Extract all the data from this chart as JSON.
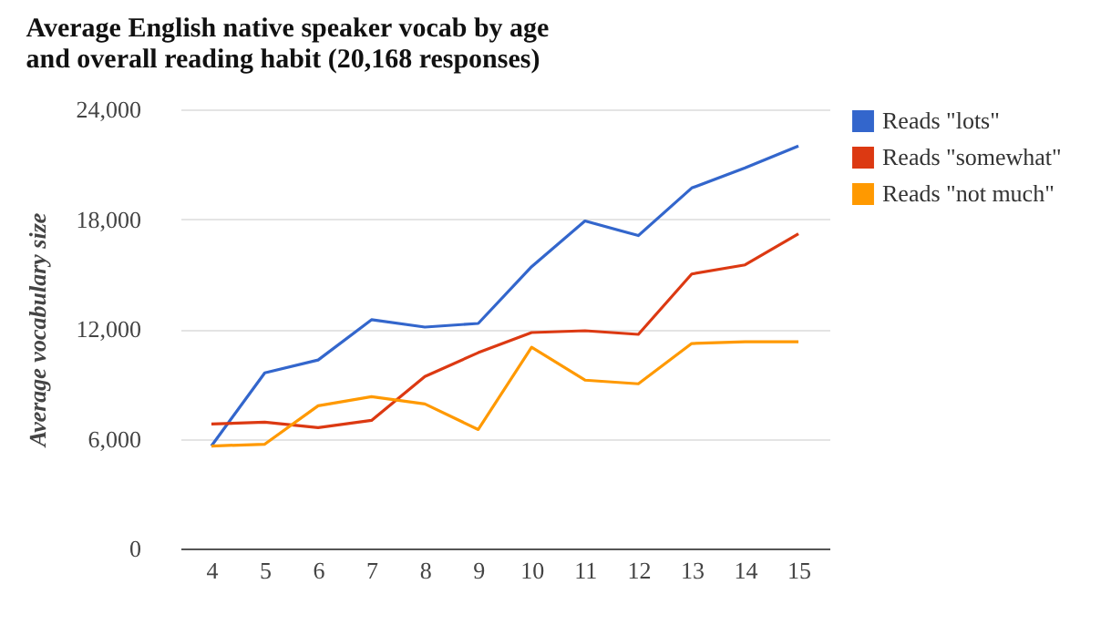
{
  "chart_data": {
    "type": "line",
    "title": "Average English native speaker vocab by age\nand overall reading habit (20,168 responses)",
    "ylabel": "Average vocabulary size",
    "categories": [
      "4",
      "5",
      "6",
      "7",
      "8",
      "9",
      "10",
      "11",
      "12",
      "13",
      "14",
      "15"
    ],
    "series": [
      {
        "name": "Reads \"lots\"",
        "color": "#3366cc",
        "values": [
          5600,
          9600,
          10300,
          12500,
          12100,
          12300,
          15400,
          17900,
          17100,
          19700,
          20800,
          22000
        ]
      },
      {
        "name": "Reads \"somewhat\"",
        "color": "#dc3912",
        "values": [
          6800,
          6900,
          6600,
          7000,
          9400,
          10700,
          11800,
          11900,
          11700,
          15000,
          15500,
          17200
        ]
      },
      {
        "name": "Reads \"not much\"",
        "color": "#ff9900",
        "values": [
          5600,
          5700,
          7800,
          8300,
          7900,
          6500,
          11000,
          9200,
          9000,
          11200,
          11300,
          11300
        ]
      }
    ],
    "ylim": [
      0,
      24000
    ],
    "yticks": [
      0,
      {
        "value": 6000,
        "label": "6,000"
      },
      {
        "value": 12000,
        "label": "12,000"
      },
      {
        "value": 18000,
        "label": "18,000"
      },
      {
        "value": 24000,
        "label": "24,000"
      }
    ],
    "grid": "y",
    "legend": "top right",
    "marker": "none",
    "line_style": "solid"
  }
}
